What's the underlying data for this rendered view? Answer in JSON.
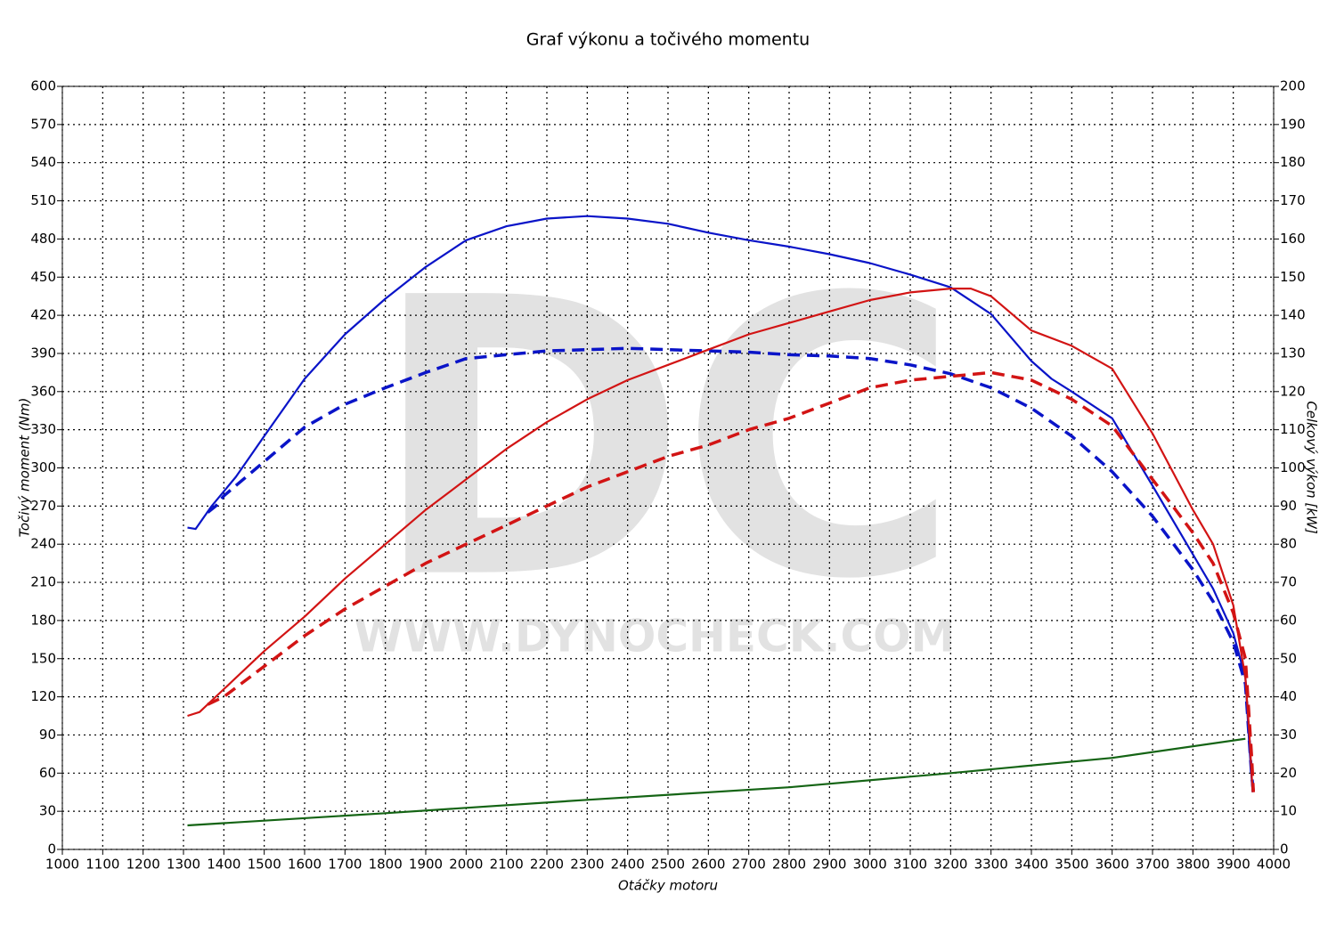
{
  "chart_data": {
    "type": "line",
    "title": "Graf výkonu a točivého momentu",
    "xlabel": "Otáčky motoru",
    "ylabel": "Točivý moment (Nm)",
    "y2label": "Celkový výkon [kW]",
    "watermark": "DC",
    "watermark_url": "WWW.DYNOCHECK.COM",
    "grid": true,
    "xlim": [
      1000,
      4000
    ],
    "xticks": [
      1000,
      1100,
      1200,
      1300,
      1400,
      1500,
      1600,
      1700,
      1800,
      1900,
      2000,
      2100,
      2200,
      2300,
      2400,
      2500,
      2600,
      2700,
      2800,
      2900,
      3000,
      3100,
      3200,
      3300,
      3400,
      3500,
      3600,
      3700,
      3800,
      3900,
      4000
    ],
    "ylim": [
      0,
      600
    ],
    "yticks": [
      0,
      30,
      60,
      90,
      120,
      150,
      180,
      210,
      240,
      270,
      300,
      330,
      360,
      390,
      420,
      450,
      480,
      510,
      540,
      570,
      600
    ],
    "y2lim": [
      0,
      200
    ],
    "y2ticks": [
      0,
      10,
      20,
      30,
      40,
      50,
      60,
      70,
      80,
      90,
      100,
      110,
      120,
      130,
      140,
      150,
      160,
      170,
      180,
      190,
      200
    ],
    "series": [
      {
        "color": "#0a14c8",
        "dash": false,
        "axis": "y",
        "x": [
          1310,
          1330,
          1370,
          1430,
          1500,
          1600,
          1700,
          1800,
          1900,
          2000,
          2100,
          2200,
          2300,
          2400,
          2500,
          2600,
          2700,
          2800,
          2900,
          3000,
          3100,
          3200,
          3300,
          3400,
          3450,
          3500,
          3600,
          3700,
          3800,
          3850,
          3900,
          3930,
          3940,
          3948
        ],
        "values": [
          253,
          252,
          270,
          293,
          325,
          370,
          405,
          433,
          458,
          479,
          490,
          496,
          498,
          496,
          492,
          485,
          479,
          474,
          468,
          461,
          452,
          442,
          421,
          384,
          370,
          360,
          339,
          286,
          232,
          205,
          170,
          135,
          80,
          45
        ]
      },
      {
        "color": "#0a14c8",
        "dash": true,
        "axis": "y",
        "x": [
          1360,
          1380,
          1400,
          1500,
          1600,
          1700,
          1800,
          1900,
          2000,
          2100,
          2200,
          2300,
          2400,
          2500,
          2600,
          2700,
          2800,
          2900,
          3000,
          3100,
          3200,
          3300,
          3400,
          3500,
          3600,
          3700,
          3800,
          3850,
          3900,
          3930,
          3945,
          3950
        ],
        "values": [
          265,
          270,
          278,
          305,
          332,
          350,
          363,
          375,
          386,
          389,
          392,
          393,
          394,
          393,
          392,
          391,
          389,
          388,
          386,
          381,
          374,
          363,
          347,
          325,
          297,
          262,
          220,
          195,
          163,
          130,
          60,
          45
        ]
      },
      {
        "color": "#d21414",
        "dash": false,
        "axis": "y2",
        "x": [
          1310,
          1340,
          1400,
          1500,
          1600,
          1700,
          1800,
          1900,
          2000,
          2100,
          2200,
          2300,
          2400,
          2500,
          2600,
          2700,
          2800,
          2900,
          3000,
          3100,
          3200,
          3250,
          3300,
          3400,
          3500,
          3600,
          3700,
          3800,
          3850,
          3900,
          3930,
          3940,
          3948
        ],
        "values": [
          35,
          36,
          42,
          52,
          61,
          71,
          80,
          89,
          97,
          105,
          112,
          118,
          123,
          127,
          131,
          135,
          138,
          141,
          144,
          146,
          147,
          147,
          145,
          136,
          132,
          126,
          109,
          89,
          80,
          64,
          45,
          30,
          15
        ]
      },
      {
        "color": "#d21414",
        "dash": true,
        "axis": "y2",
        "x": [
          1360,
          1400,
          1500,
          1600,
          1700,
          1800,
          1900,
          2000,
          2100,
          2200,
          2300,
          2400,
          2500,
          2600,
          2700,
          2800,
          2900,
          3000,
          3100,
          3200,
          3300,
          3400,
          3500,
          3600,
          3700,
          3800,
          3850,
          3900,
          3930,
          3945,
          3950
        ],
        "values": [
          38,
          40,
          48,
          56,
          63,
          69,
          75,
          80,
          85,
          90,
          95,
          99,
          103,
          106,
          110,
          113,
          117,
          121,
          123,
          124,
          125,
          123,
          118,
          111,
          97,
          83,
          75,
          62,
          50,
          25,
          15
        ]
      },
      {
        "color": "#146414",
        "dash": false,
        "axis": "y2",
        "x": [
          1310,
          1800,
          2300,
          2800,
          3200,
          3600,
          3930
        ],
        "values": [
          6.3,
          9.5,
          13,
          16.3,
          20,
          24,
          29
        ]
      }
    ]
  }
}
